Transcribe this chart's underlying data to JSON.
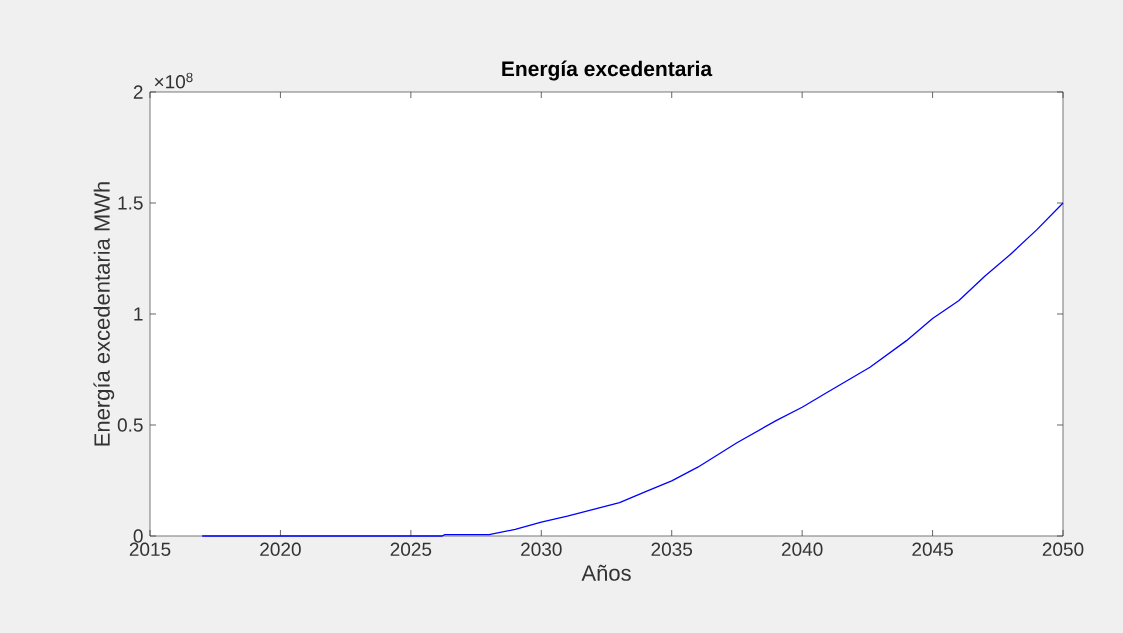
{
  "chart_data": {
    "type": "line",
    "title": "Energía excedentaria",
    "xlabel": "Años",
    "ylabel": "Energía excedentaria MWh",
    "annotations": [
      "×10$^{8}$"
    ],
    "x": [
      2017,
      2020,
      2024,
      2026.2,
      2026.3,
      2028,
      2029,
      2030,
      2031,
      2032,
      2033,
      2034,
      2035,
      2036,
      2037.5,
      2039,
      2040,
      2041,
      2042.6,
      2044,
      2045,
      2046,
      2047,
      2048,
      2049,
      2050
    ],
    "series": [
      {
        "color": "#0000ff",
        "values": [
          0,
          0,
          0,
          0,
          0.006,
          0.006,
          0.03,
          0.063,
          0.09,
          0.12,
          0.15,
          0.2,
          0.248,
          0.31,
          0.42,
          0.52,
          0.58,
          0.65,
          0.76,
          0.88,
          0.98,
          1.06,
          1.17,
          1.27,
          1.38,
          1.5
        ]
      }
    ],
    "xlim": [
      2015,
      2050
    ],
    "ylim": [
      0,
      2
    ],
    "xticks": [
      2015,
      2020,
      2025,
      2030,
      2035,
      2040,
      2045,
      2050
    ],
    "yticks": [
      0,
      0.5,
      1,
      1.5,
      2
    ],
    "grid": false,
    "marker": "none",
    "line_style": "solid"
  }
}
